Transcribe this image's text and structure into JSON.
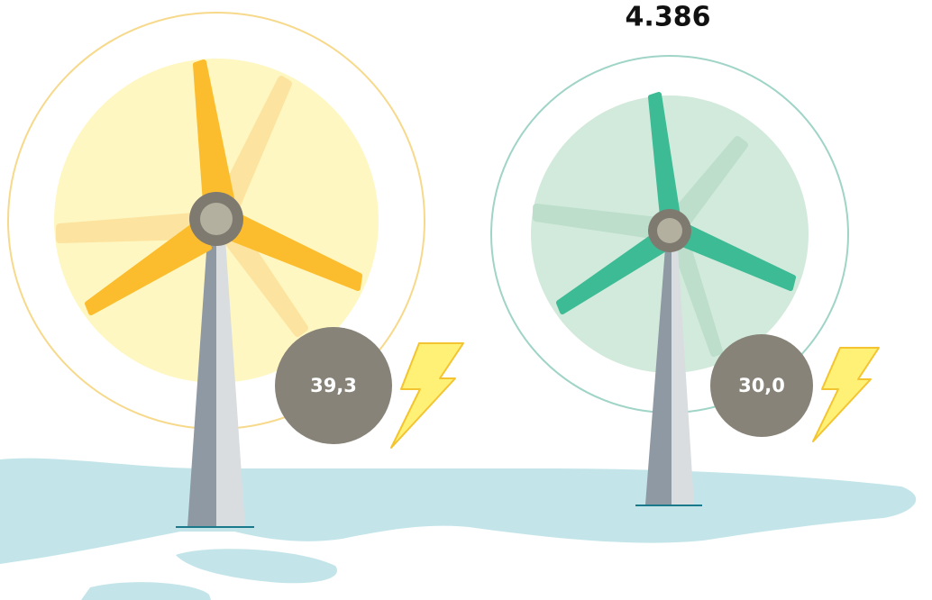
{
  "title": "4.386",
  "turbines": [
    {
      "label": "39,3"
    },
    {
      "label": "30,0"
    }
  ]
}
